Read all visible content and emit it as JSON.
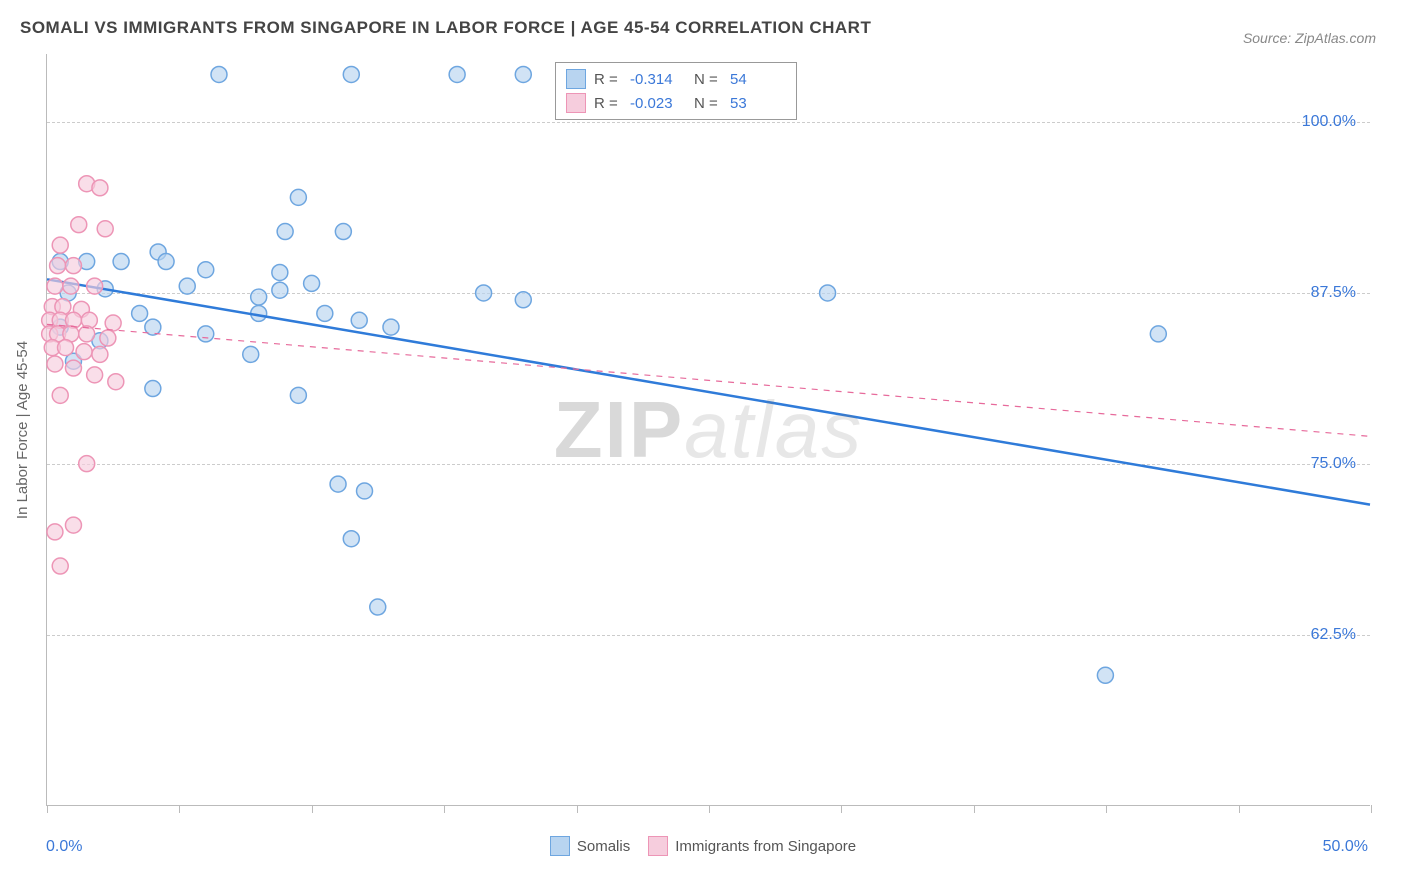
{
  "title": "SOMALI VS IMMIGRANTS FROM SINGAPORE IN LABOR FORCE | AGE 45-54 CORRELATION CHART",
  "source": "Source: ZipAtlas.com",
  "y_axis_label": "In Labor Force | Age 45-54",
  "watermark_bold": "ZIP",
  "watermark_italic": "atlas",
  "chart": {
    "type": "scatter",
    "xlim": [
      0,
      50
    ],
    "ylim": [
      50,
      105
    ],
    "y_ticks": [
      62.5,
      75.0,
      87.5,
      100.0
    ],
    "y_tick_labels": [
      "62.5%",
      "75.0%",
      "87.5%",
      "100.0%"
    ],
    "x_ticks": [
      0,
      5,
      10,
      15,
      20,
      25,
      30,
      35,
      40,
      45,
      50
    ],
    "x_tick_labels": {
      "first": "0.0%",
      "last": "50.0%"
    },
    "background_color": "#ffffff",
    "grid_color": "#cccccc",
    "axis_color": "#bbbbbb",
    "tick_label_color": "#3b78d8",
    "axis_label_color": "#666666",
    "marker_radius": 8,
    "marker_stroke_width": 1.5,
    "line_width_solid": 2.5,
    "line_width_dashed": 1.2,
    "series": [
      {
        "name": "Somalis",
        "marker_fill": "#b8d4f0",
        "marker_stroke": "#6ea6e0",
        "line_color": "#2f7bd9",
        "line_style": "solid",
        "R": "-0.314",
        "N": "54",
        "trend": {
          "x1": 0,
          "y1": 88.5,
          "x2": 50,
          "y2": 72.0
        },
        "points": [
          [
            6.5,
            103.5
          ],
          [
            11.5,
            103.5
          ],
          [
            15.5,
            103.5
          ],
          [
            18.0,
            103.5
          ],
          [
            9.5,
            94.5
          ],
          [
            9.0,
            92.0
          ],
          [
            11.2,
            92.0
          ],
          [
            4.2,
            90.5
          ],
          [
            0.5,
            89.8
          ],
          [
            1.5,
            89.8
          ],
          [
            2.8,
            89.8
          ],
          [
            4.5,
            89.8
          ],
          [
            6.0,
            89.2
          ],
          [
            8.8,
            89.0
          ],
          [
            8.8,
            87.7
          ],
          [
            10.0,
            88.2
          ],
          [
            5.3,
            88.0
          ],
          [
            2.2,
            87.8
          ],
          [
            0.8,
            87.5
          ],
          [
            3.5,
            86.0
          ],
          [
            6.0,
            84.5
          ],
          [
            8.0,
            87.2
          ],
          [
            8.0,
            86.0
          ],
          [
            7.7,
            83.0
          ],
          [
            10.5,
            86.0
          ],
          [
            11.8,
            85.5
          ],
          [
            13.0,
            85.0
          ],
          [
            16.5,
            87.5
          ],
          [
            18.0,
            87.0
          ],
          [
            29.5,
            87.5
          ],
          [
            0.5,
            85.0
          ],
          [
            2.0,
            84.0
          ],
          [
            4.0,
            85.0
          ],
          [
            1.0,
            82.5
          ],
          [
            4.0,
            80.5
          ],
          [
            9.5,
            80.0
          ],
          [
            11.0,
            73.5
          ],
          [
            12.0,
            73.0
          ],
          [
            11.5,
            69.5
          ],
          [
            12.5,
            64.5
          ],
          [
            42.0,
            84.5
          ],
          [
            40.0,
            59.5
          ]
        ]
      },
      {
        "name": "Immigrants from Singapore",
        "marker_fill": "#f6cddd",
        "marker_stroke": "#ed95b6",
        "line_color": "#e76a9b",
        "line_style": "dashed",
        "R": "-0.023",
        "N": "53",
        "trend": {
          "x1": 0,
          "y1": 85.2,
          "x2": 50,
          "y2": 77.0
        },
        "points": [
          [
            1.5,
            95.5
          ],
          [
            2.0,
            95.2
          ],
          [
            1.2,
            92.5
          ],
          [
            2.2,
            92.2
          ],
          [
            0.5,
            91.0
          ],
          [
            0.4,
            89.5
          ],
          [
            1.0,
            89.5
          ],
          [
            0.3,
            88.0
          ],
          [
            0.9,
            88.0
          ],
          [
            1.8,
            88.0
          ],
          [
            0.2,
            86.5
          ],
          [
            0.6,
            86.5
          ],
          [
            1.3,
            86.3
          ],
          [
            0.1,
            85.5
          ],
          [
            0.5,
            85.5
          ],
          [
            1.0,
            85.5
          ],
          [
            1.6,
            85.5
          ],
          [
            2.5,
            85.3
          ],
          [
            0.1,
            84.5
          ],
          [
            0.4,
            84.5
          ],
          [
            0.9,
            84.5
          ],
          [
            1.5,
            84.5
          ],
          [
            2.3,
            84.2
          ],
          [
            0.2,
            83.5
          ],
          [
            0.7,
            83.5
          ],
          [
            1.4,
            83.2
          ],
          [
            2.0,
            83.0
          ],
          [
            0.3,
            82.3
          ],
          [
            1.0,
            82.0
          ],
          [
            1.8,
            81.5
          ],
          [
            2.6,
            81.0
          ],
          [
            0.5,
            80.0
          ],
          [
            1.5,
            75.0
          ],
          [
            0.3,
            70.0
          ],
          [
            1.0,
            70.5
          ],
          [
            0.5,
            67.5
          ]
        ]
      }
    ],
    "legend_top_labels": {
      "R": "R =",
      "N": "N ="
    },
    "legend_bottom": [
      {
        "label": "Somalis",
        "fill": "#b8d4f0",
        "stroke": "#6ea6e0"
      },
      {
        "label": "Immigrants from Singapore",
        "fill": "#f6cddd",
        "stroke": "#ed95b6"
      }
    ]
  }
}
